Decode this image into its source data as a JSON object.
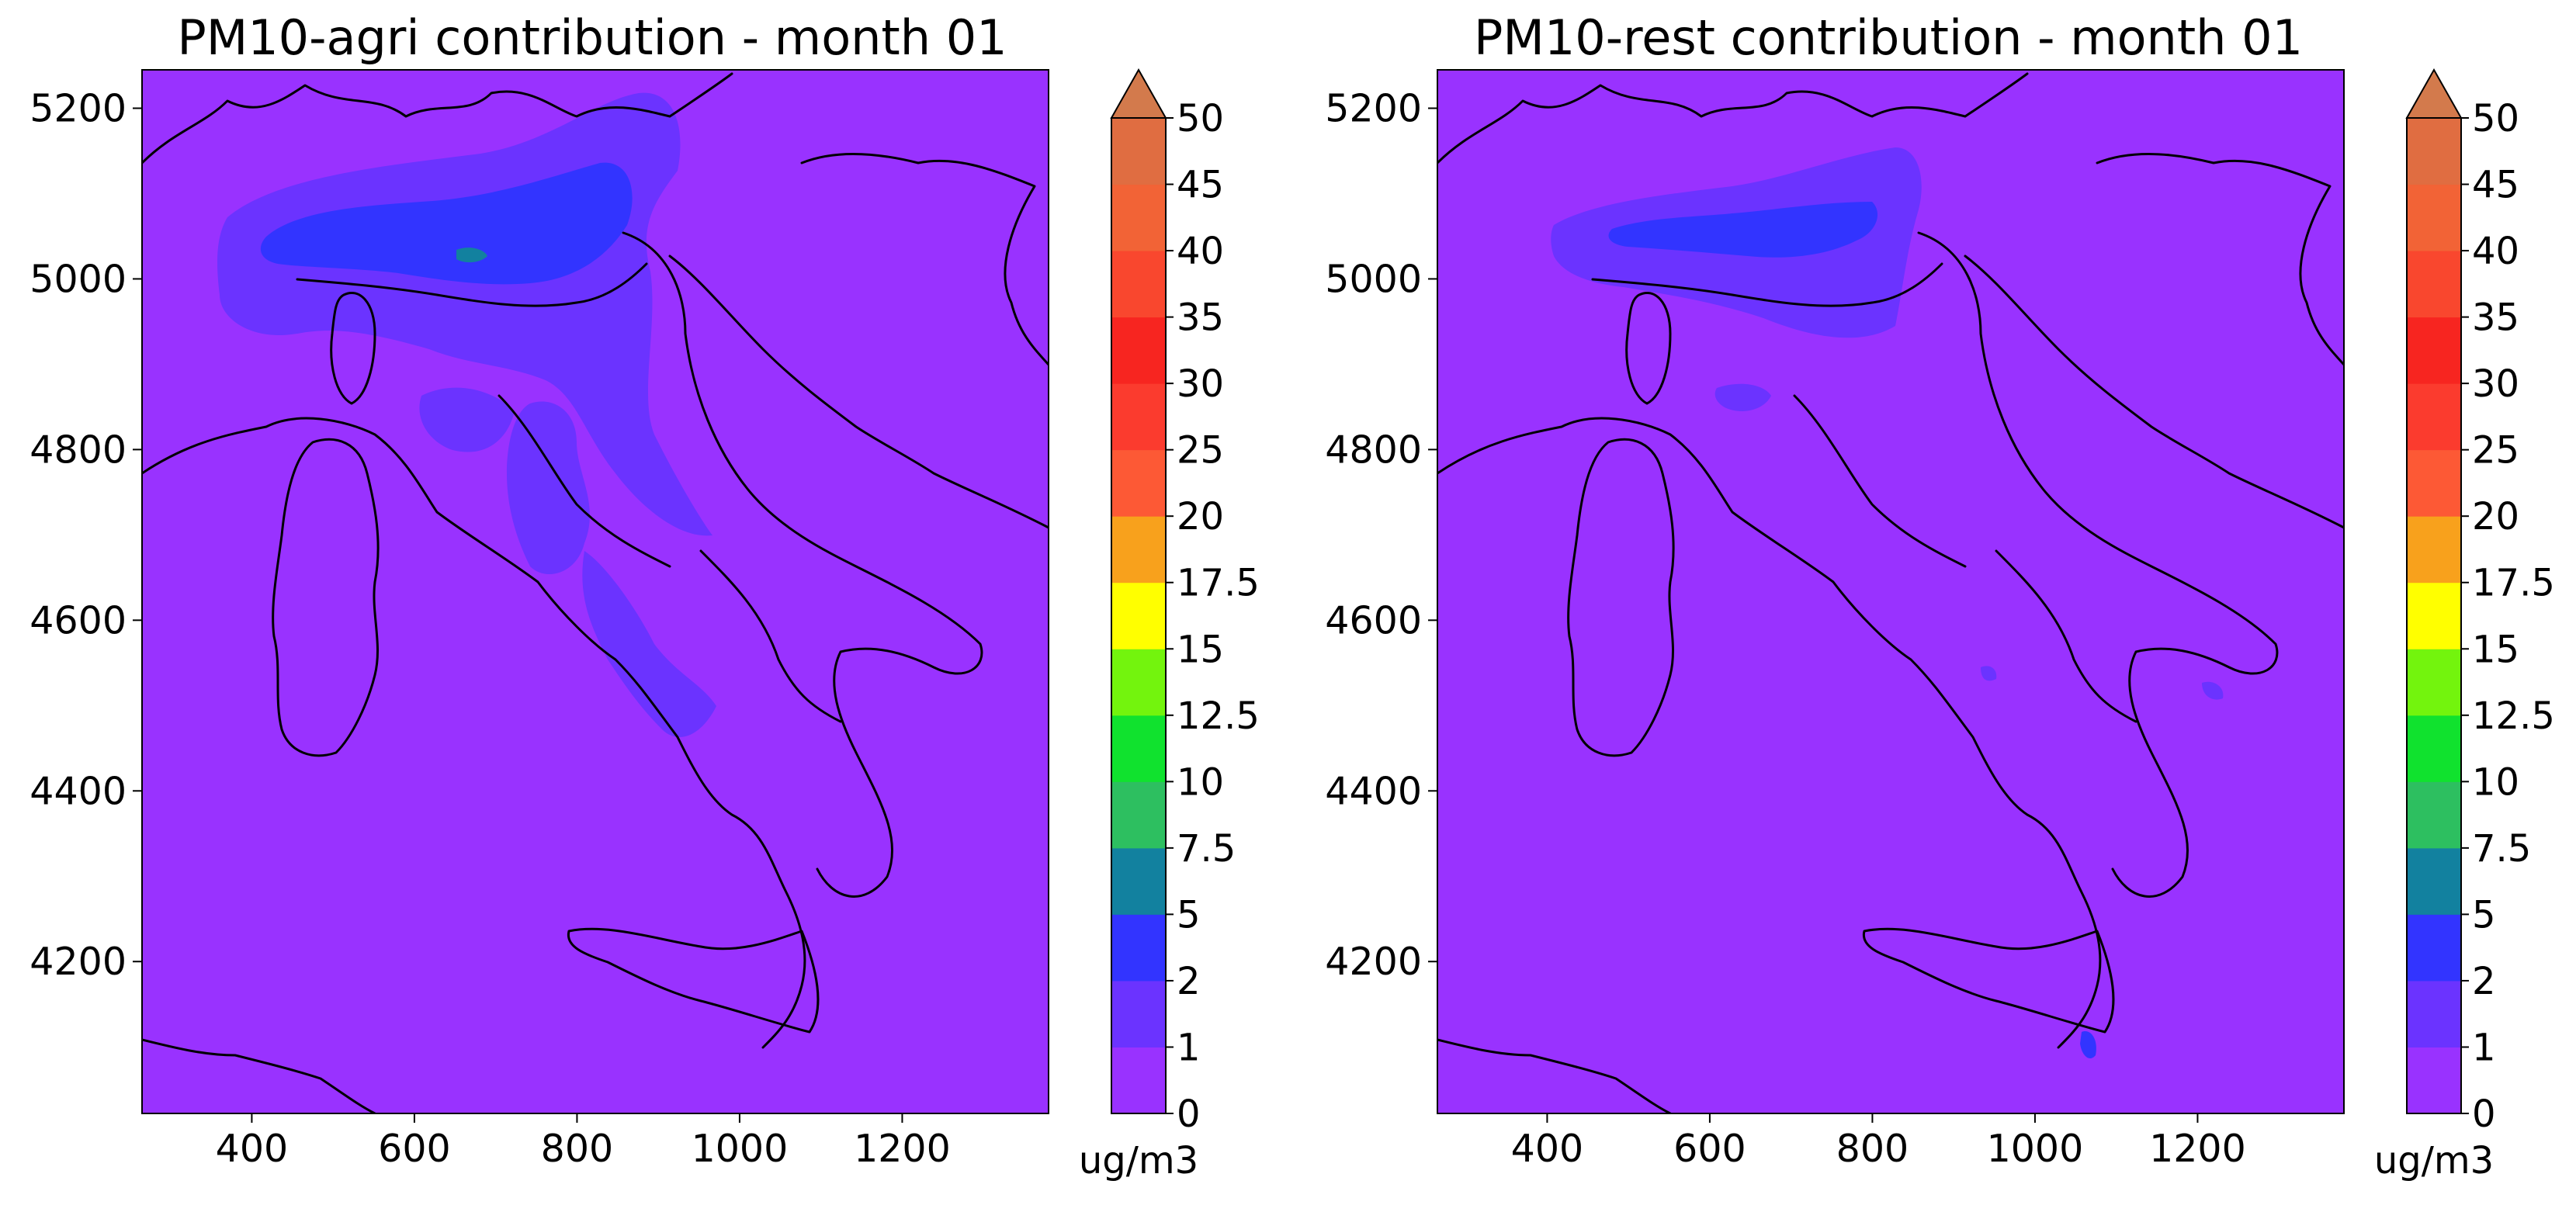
{
  "chart_data": [
    {
      "type": "contour-map",
      "title": "PM10-agri contribution - month 01",
      "xlim": [
        265,
        1380
      ],
      "ylim": [
        4022,
        5245
      ],
      "xticks": [
        400,
        600,
        800,
        1000,
        1200
      ],
      "yticks": [
        4200,
        4400,
        4600,
        4800,
        5000,
        5200
      ],
      "colorbar": {
        "levels": [
          "0",
          "1",
          "2",
          "5",
          "7.5",
          "10",
          "12.5",
          "15",
          "17.5",
          "20",
          "25",
          "30",
          "35",
          "40",
          "45",
          "50"
        ],
        "colors": [
          "#9932ff",
          "#6b33ff",
          "#3234ff",
          "#12819f",
          "#2dbf60",
          "#10e22e",
          "#73f40d",
          "#ffff00",
          "#f8a11c",
          "#fd5935",
          "#fb3b2e",
          "#f72520",
          "#f9472e",
          "#f26336",
          "#e06d41"
        ],
        "extend_color": "#d37a4c",
        "extend": "max",
        "label": "ug/m3"
      },
      "field_regions": [
        {
          "level_index": 1,
          "description": "Po Valley (northern Italy) moderate band 1-2"
        },
        {
          "level_index": 2,
          "description": "Po Valley core 2-5"
        },
        {
          "level_index": 1,
          "description": "Tuscany / Umbria / Lazio / Campania patches 1-2"
        }
      ]
    },
    {
      "type": "contour-map",
      "title": "PM10-rest contribution - month 01",
      "xlim": [
        265,
        1380
      ],
      "ylim": [
        4022,
        5245
      ],
      "xticks": [
        400,
        600,
        800,
        1000,
        1200
      ],
      "yticks": [
        4200,
        4400,
        4600,
        4800,
        5000,
        5200
      ],
      "colorbar": {
        "levels": [
          "0",
          "1",
          "2",
          "5",
          "7.5",
          "10",
          "12.5",
          "15",
          "17.5",
          "20",
          "25",
          "30",
          "35",
          "40",
          "45",
          "50"
        ],
        "colors": [
          "#9932ff",
          "#6b33ff",
          "#3234ff",
          "#12819f",
          "#2dbf60",
          "#10e22e",
          "#73f40d",
          "#ffff00",
          "#f8a11c",
          "#fd5935",
          "#fb3b2e",
          "#f72520",
          "#f9472e",
          "#f26336",
          "#e06d41"
        ],
        "extend_color": "#d37a4c",
        "extend": "max",
        "label": "ug/m3"
      },
      "field_regions": [
        {
          "level_index": 1,
          "description": "Po Valley band 1-2"
        },
        {
          "level_index": 2,
          "description": "Milan area and eastern Po Valley 2-5"
        },
        {
          "level_index": 1,
          "description": "Small hot spots: Bari, Catania, Naples, Florence"
        }
      ]
    }
  ]
}
